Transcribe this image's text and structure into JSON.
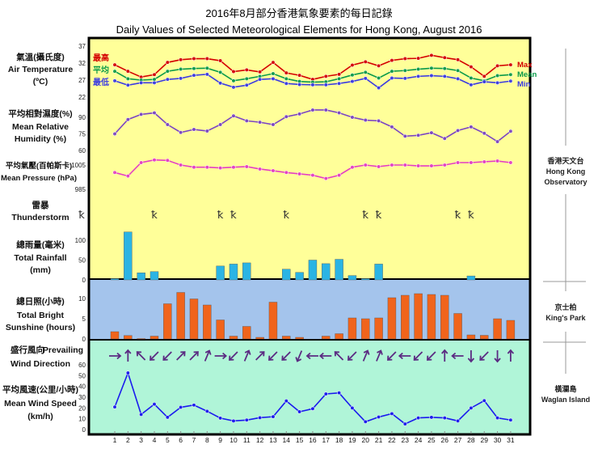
{
  "title_zh": "2016年8月部分香港氣象要素的每日記錄",
  "title_en": "Daily Values of Selected Meteorological Elements for Hong Kong, August 2016",
  "stations": [
    {
      "zh": "香港天文台",
      "en1": "Hong Kong",
      "en2": "Observatory"
    },
    {
      "zh": "京士柏",
      "en1": "King's Park",
      "en2": ""
    },
    {
      "zh": "橫瀾島",
      "en1": "Waglan Island",
      "en2": ""
    }
  ],
  "colors": {
    "upper_bg": "#ffff99",
    "middle_bg": "#a4c4ec",
    "lower_bg": "#b0f5d8",
    "max": "#d40000",
    "mean": "#0b9a4a",
    "min": "#3b3be0",
    "humidity": "#7b45c2",
    "pressure": "#e43fc3",
    "rain": "#2bb4e4",
    "sunshine": "#f0641c",
    "wind_speed": "#1a1aee",
    "wind_dir": "#5b2b82"
  },
  "chart_data": {
    "type": "multi-panel",
    "days": [
      1,
      2,
      3,
      4,
      5,
      6,
      7,
      8,
      9,
      10,
      11,
      12,
      13,
      14,
      15,
      16,
      17,
      18,
      19,
      20,
      21,
      22,
      23,
      24,
      25,
      26,
      27,
      28,
      29,
      30,
      31
    ],
    "temperature": {
      "label_zh": "氣溫(攝氏度)",
      "label_en": "Air Temperature",
      "unit": "(ºC)",
      "ticks": [
        37,
        32,
        27,
        22
      ],
      "legend": {
        "max_zh": "最高",
        "mean_zh": "平均",
        "min_zh": "最低",
        "max_en": "Max",
        "mean_en": "Mean",
        "min_en": "Min"
      },
      "max": [
        31.5,
        29.6,
        27.9,
        28.6,
        32.2,
        33.0,
        33.3,
        33.3,
        32.7,
        29.5,
        30.0,
        29.4,
        32.2,
        29.1,
        28.4,
        27.2,
        28.1,
        28.7,
        31.4,
        32.4,
        31.2,
        32.8,
        33.3,
        33.4,
        34.3,
        33.6,
        33.0,
        30.9,
        28.1,
        31.2,
        31.5
      ],
      "mean": [
        29.6,
        27.4,
        27.0,
        27.2,
        29.6,
        30.2,
        30.4,
        30.5,
        29.3,
        26.8,
        27.4,
        28.1,
        28.9,
        27.4,
        26.6,
        26.4,
        26.5,
        27.4,
        28.5,
        29.3,
        27.6,
        29.6,
        29.8,
        30.2,
        30.5,
        30.4,
        29.8,
        27.6,
        26.8,
        28.3,
        28.6
      ],
      "min": [
        26.8,
        25.5,
        26.2,
        26.2,
        27.2,
        27.5,
        28.4,
        28.7,
        26.1,
        24.9,
        25.5,
        27.2,
        27.4,
        26.0,
        25.7,
        25.6,
        25.6,
        26.0,
        26.6,
        27.5,
        24.7,
        27.6,
        27.5,
        28.1,
        28.3,
        28.1,
        27.4,
        25.6,
        26.5,
        26.2,
        26.7
      ]
    },
    "humidity": {
      "label_zh": "平均相對濕度(%)",
      "label_en1": "Mean Relative",
      "label_en2": "Humidity  (%)",
      "ticks": [
        90,
        75,
        60
      ],
      "values": [
        75,
        88,
        92.6,
        94,
        83.4,
        76.3,
        79,
        77.6,
        83.4,
        91.3,
        86.8,
        85.5,
        83.4,
        90.5,
        93,
        96.6,
        96.6,
        94,
        90,
        87.4,
        86.8,
        81.3,
        72.9,
        73.7,
        76,
        70.8,
        78,
        81.3,
        75.5,
        68,
        77.4
      ]
    },
    "pressure": {
      "label_zh": "平均氣壓(百帕斯卡)",
      "label_en": "Mean Pressure (hPa)",
      "ticks": [
        1005,
        985
      ],
      "values": [
        998.8,
        995.9,
        1007,
        1009.2,
        1008.8,
        1005,
        1003.2,
        1003.2,
        1002.6,
        1003.2,
        1003.7,
        1001.7,
        1000.3,
        998.8,
        997.7,
        996.6,
        993.9,
        996.6,
        1003.2,
        1005,
        1003.7,
        1005,
        1005,
        1004.3,
        1004.3,
        1005,
        1007,
        1007,
        1007.7,
        1008.3,
        1007
      ]
    },
    "thunderstorm": {
      "label_zh": "雷暴",
      "label_en": "Thunderstorm",
      "symbol": "ꝁ",
      "days": [
        4,
        9,
        10,
        14,
        20,
        21,
        27,
        28
      ]
    },
    "rainfall": {
      "label_zh": "總雨量(毫米)",
      "label_en1": "Total Rainfall",
      "label_en2": "(mm)",
      "ticks": [
        100,
        50,
        0
      ],
      "values": [
        3,
        121,
        18,
        21,
        0,
        0,
        0,
        0,
        35,
        40,
        43,
        0,
        0,
        27,
        19,
        50,
        41,
        52,
        11,
        3,
        40,
        0,
        0,
        0,
        0,
        0,
        0,
        10,
        0,
        0,
        0
      ]
    },
    "sunshine": {
      "label_zh": "總日照(小時)",
      "label_en1": "Total Bright",
      "label_en2": "Sunshine  (hours)",
      "ticks": [
        10,
        5,
        0
      ],
      "values": [
        1.8,
        0.85,
        0.1,
        0.7,
        8.7,
        11.5,
        9.9,
        8.4,
        4.7,
        0.7,
        3.1,
        0.4,
        9.1,
        0.7,
        0.4,
        0,
        0.7,
        1.3,
        5.2,
        5.0,
        5.2,
        10.2,
        10.8,
        11.2,
        11.0,
        10.8,
        6.3,
        1.0,
        0.9,
        5.0,
        4.6
      ]
    },
    "wind_direction": {
      "label_zh": "盛行風向",
      "label_en1": "Prevailing",
      "label_en2": "Wind Direction",
      "values": [
        "W",
        "S",
        "SE",
        "NE",
        "NE",
        "SW",
        "SW",
        "SSW",
        "W",
        "NE",
        "SSW",
        "SW",
        "NE",
        "NE",
        "NNE",
        "E",
        "E",
        "SE",
        "NE",
        "SSW",
        "SSW",
        "NE",
        "E",
        "NE",
        "NE",
        "S",
        "E",
        "N",
        "NE",
        "N",
        "S"
      ]
    },
    "wind_speed": {
      "label_zh": "平均風速(公里/小時)",
      "label_en1": "Mean Wind Speed",
      "label_en2": "(km/h)",
      "ticks": [
        60,
        50,
        40,
        30,
        20,
        10,
        0
      ],
      "values": [
        20.9,
        52.5,
        14,
        23.5,
        11.3,
        20.6,
        22.7,
        17,
        10.6,
        8,
        8.8,
        11,
        11.9,
        26.5,
        16.5,
        19.3,
        33,
        34,
        20,
        7.2,
        11.6,
        14.7,
        5.2,
        10.8,
        11.3,
        10.8,
        8,
        20,
        26.8,
        10.8,
        8.8
      ]
    }
  }
}
